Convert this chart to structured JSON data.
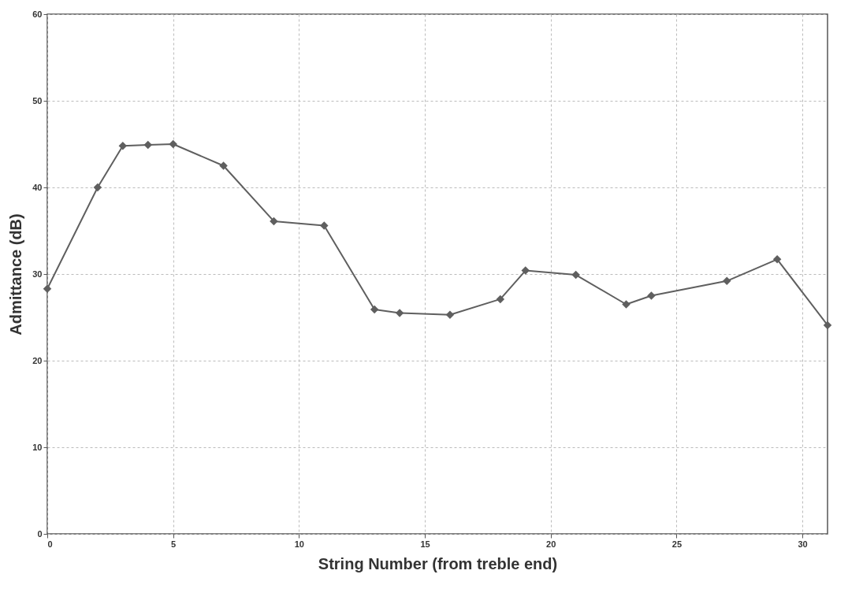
{
  "chart_data": {
    "type": "line",
    "xlabel": "String Number (from treble end)",
    "ylabel": "Admittance (dB)",
    "x": [
      0,
      2,
      3,
      4,
      5,
      7,
      9,
      11,
      13,
      14,
      16,
      18,
      19,
      21,
      23,
      24,
      27,
      29,
      31
    ],
    "series": [
      {
        "color": "#5f5f5f",
        "values": [
          28.3,
          40.0,
          44.8,
          44.9,
          45.0,
          42.5,
          36.1,
          35.6,
          25.9,
          25.5,
          25.3,
          27.1,
          30.4,
          29.9,
          26.5,
          27.5,
          29.2,
          31.7,
          24.1
        ]
      }
    ],
    "xlim": [
      0,
      31
    ],
    "xticks": [
      0,
      5,
      10,
      15,
      20,
      25,
      30
    ],
    "ylim": [
      0,
      60
    ],
    "yticks": [
      0,
      10,
      20,
      30,
      40,
      50,
      60
    ],
    "grid": true,
    "marker": "diamond",
    "line_style": "solid"
  }
}
